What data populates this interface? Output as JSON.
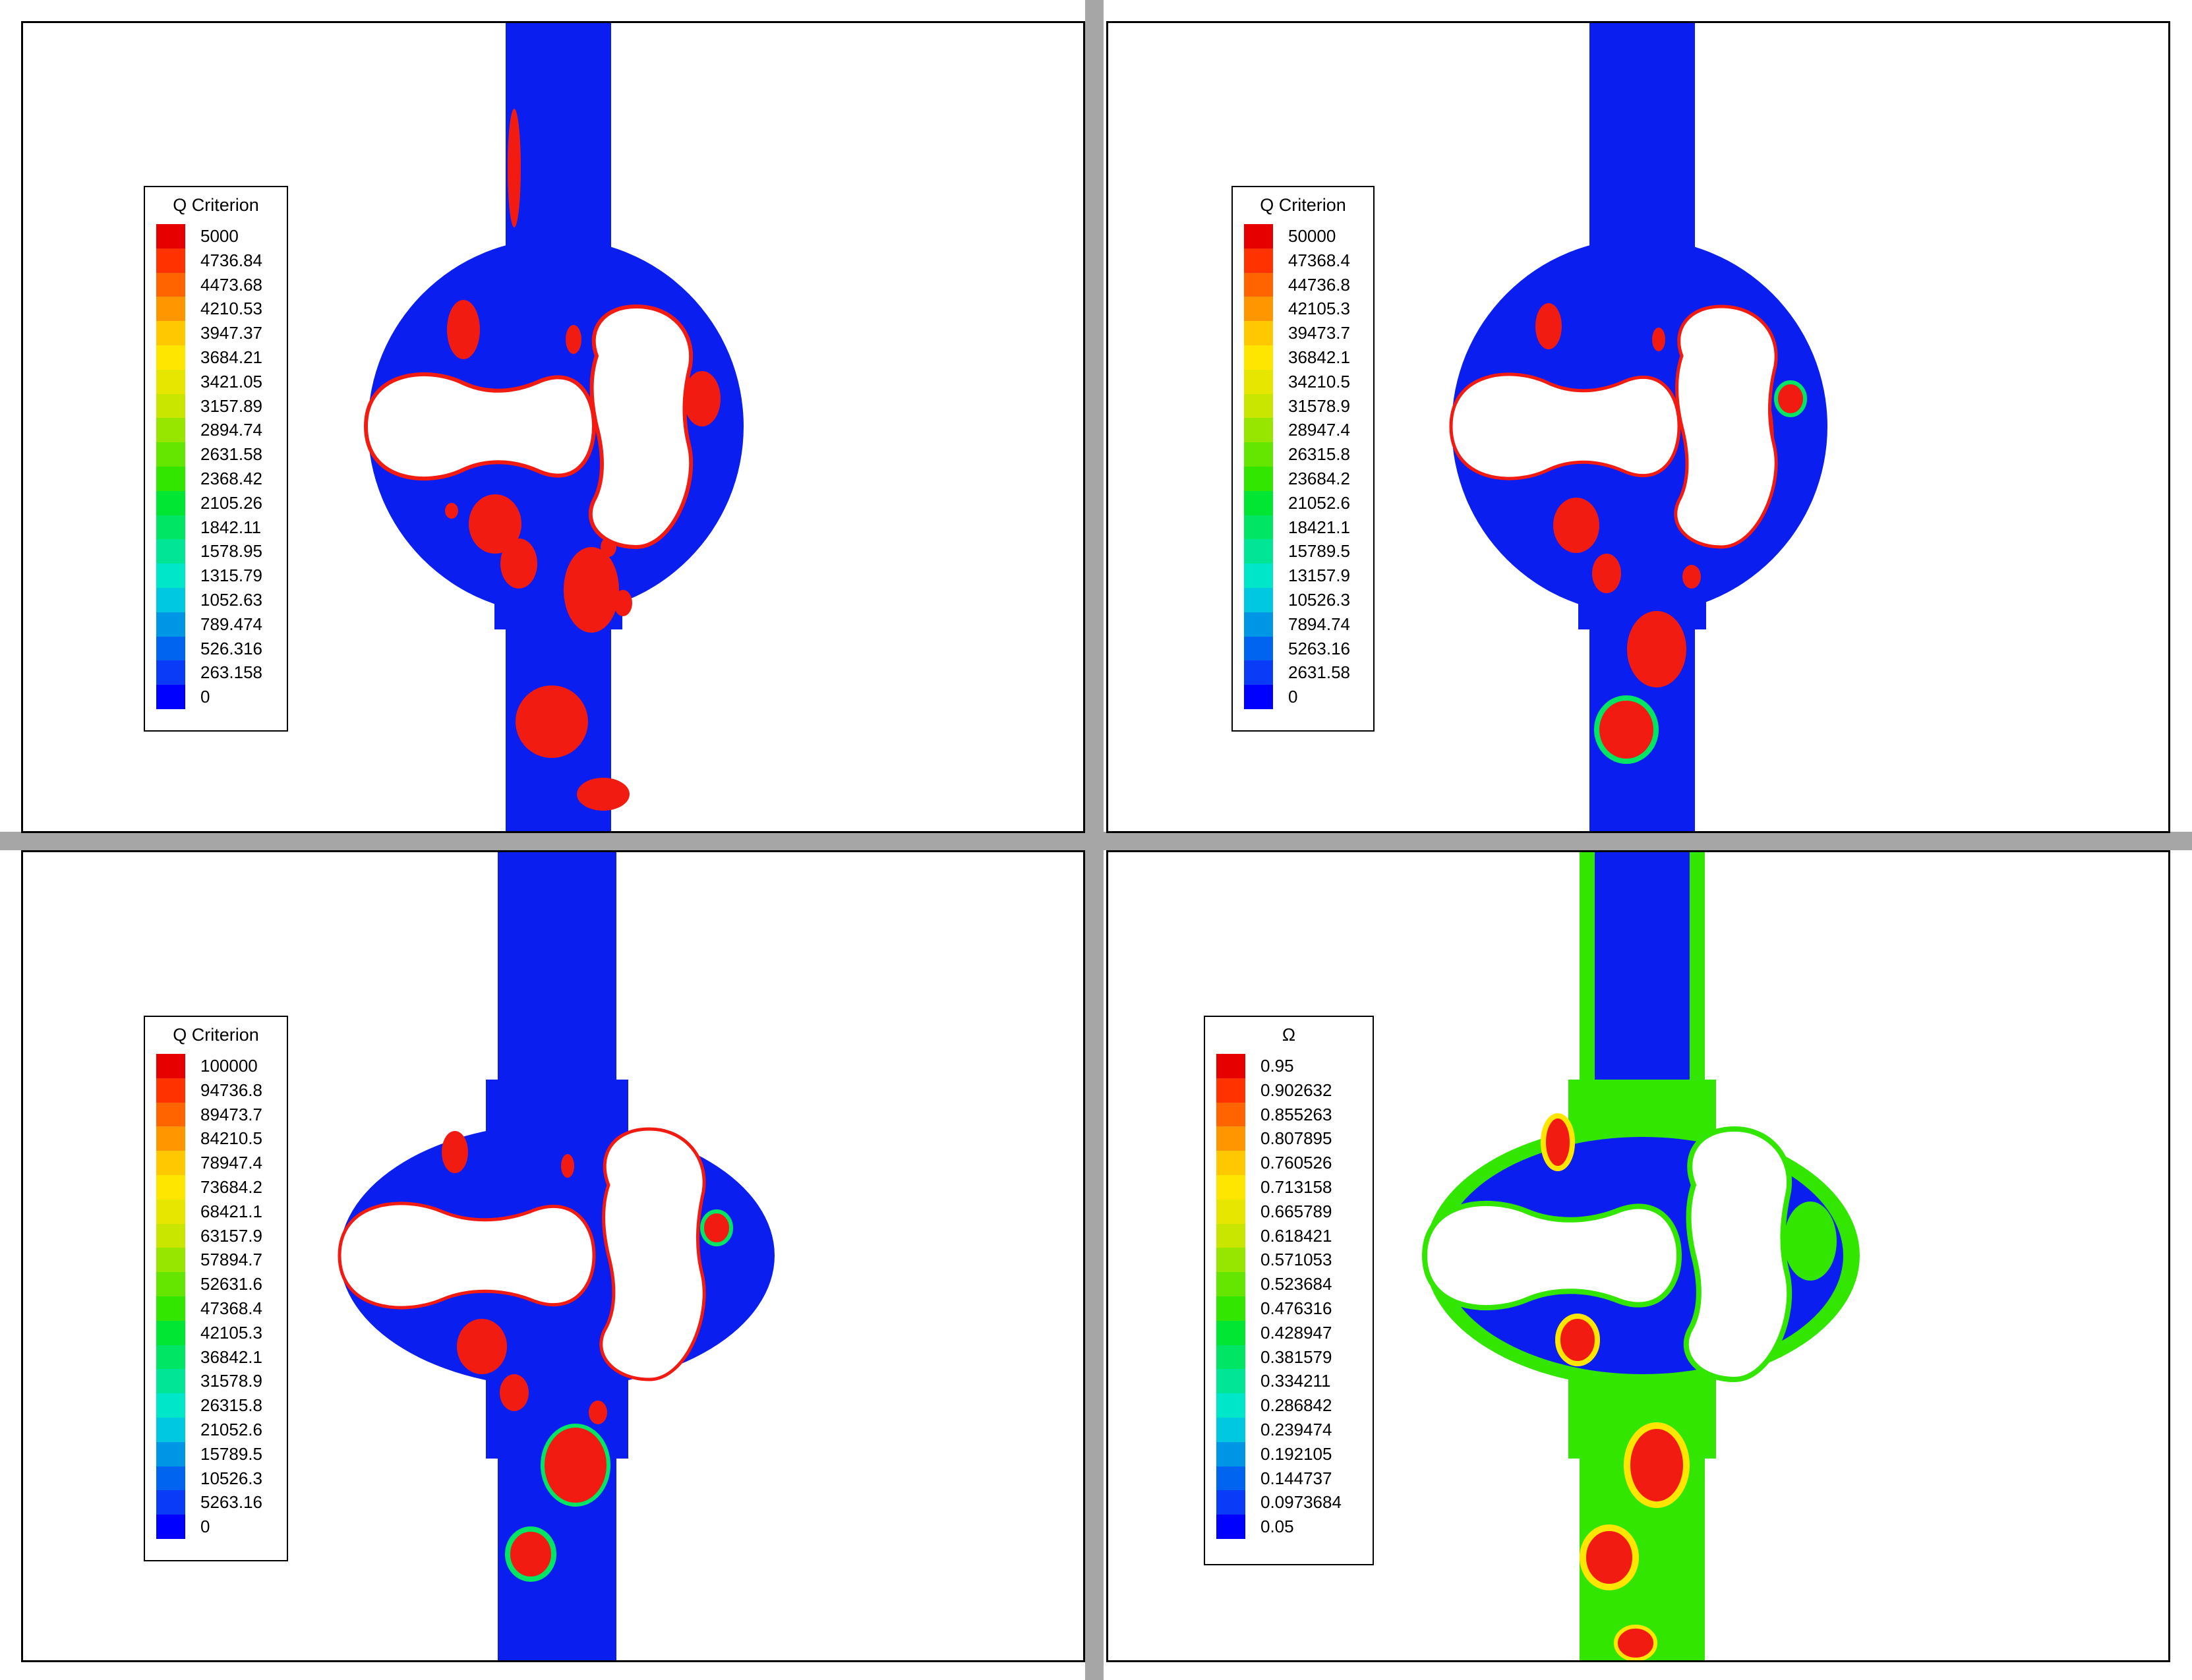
{
  "colors": {
    "background": "#ffffff",
    "frame": "#000000",
    "divider": "#a6a6a6",
    "flow_base": "#0a1ef0",
    "vortex": "#f21b12",
    "rotor": "#ffffff",
    "legend_scale": [
      "#0000ff",
      "#0a3cf8",
      "#0064f0",
      "#0096e6",
      "#00c8e0",
      "#00e6c8",
      "#00e696",
      "#00e664",
      "#00e632",
      "#32e600",
      "#64e600",
      "#96e600",
      "#c8e600",
      "#e6e600",
      "#ffe600",
      "#ffc800",
      "#ff9600",
      "#ff6400",
      "#ff3200",
      "#e60000"
    ]
  },
  "panels": [
    {
      "legend": {
        "title": "Q Criterion",
        "labels": [
          "5000",
          "4736.84",
          "4473.68",
          "4210.53",
          "3947.37",
          "3684.21",
          "3421.05",
          "3157.89",
          "2894.74",
          "2631.58",
          "2368.42",
          "2105.26",
          "1842.11",
          "1578.95",
          "1315.79",
          "1052.63",
          "789.474",
          "526.316",
          "263.158",
          "0"
        ]
      }
    },
    {
      "legend": {
        "title": "Q Criterion",
        "labels": [
          "50000",
          "47368.4",
          "44736.8",
          "42105.3",
          "39473.7",
          "36842.1",
          "34210.5",
          "31578.9",
          "28947.4",
          "26315.8",
          "23684.2",
          "21052.6",
          "18421.1",
          "15789.5",
          "13157.9",
          "10526.3",
          "7894.74",
          "5263.16",
          "2631.58",
          "0"
        ]
      }
    },
    {
      "legend": {
        "title": "Q Criterion",
        "labels": [
          "100000",
          "94736.8",
          "89473.7",
          "84210.5",
          "78947.4",
          "73684.2",
          "68421.1",
          "63157.9",
          "57894.7",
          "52631.6",
          "47368.4",
          "42105.3",
          "36842.1",
          "31578.9",
          "26315.8",
          "21052.6",
          "15789.5",
          "10526.3",
          "5263.16",
          "0"
        ]
      }
    },
    {
      "legend": {
        "title": "Ω",
        "labels": [
          "0.95",
          "0.902632",
          "0.855263",
          "0.807895",
          "0.760526",
          "0.713158",
          "0.665789",
          "0.618421",
          "0.571053",
          "0.523684",
          "0.476316",
          "0.428947",
          "0.381579",
          "0.334211",
          "0.286842",
          "0.239474",
          "0.192105",
          "0.144737",
          "0.0973684",
          "0.05"
        ]
      }
    }
  ]
}
